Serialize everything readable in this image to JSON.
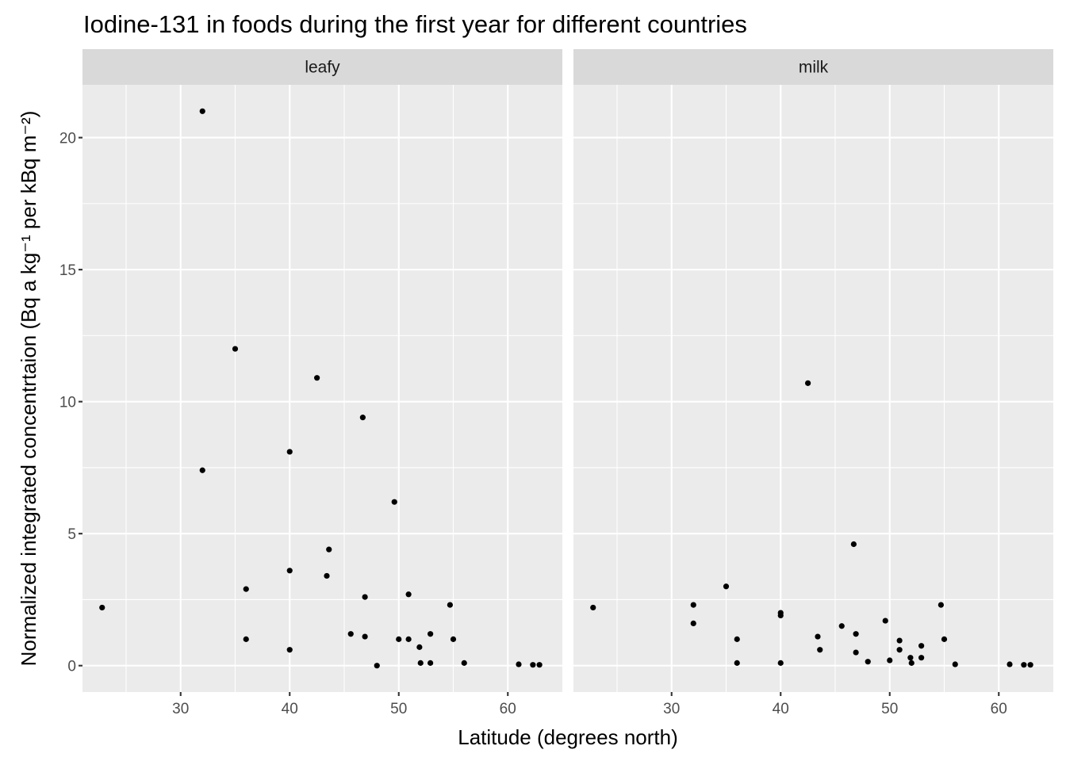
{
  "chart_data": {
    "type": "scatter",
    "title": "Iodine-131 in foods during the first year for different countries",
    "xlabel": "Latitude (degrees north)",
    "ylabel": "Normalized integrated concentrtaion (Bq a kg⁻¹ per kBq m⁻²)",
    "xlim": [
      21.0,
      65.0
    ],
    "ylim": [
      -1.0,
      22.0
    ],
    "xticks": [
      30,
      40,
      50,
      60
    ],
    "yticks": [
      0,
      5,
      10,
      15,
      20
    ],
    "grid": true,
    "legend": "none",
    "panels": [
      {
        "name": "leafy",
        "points": [
          {
            "x": 22.8,
            "y": 2.2
          },
          {
            "x": 32.0,
            "y": 21.0
          },
          {
            "x": 32.0,
            "y": 7.4
          },
          {
            "x": 35.0,
            "y": 12.0
          },
          {
            "x": 36.0,
            "y": 2.9
          },
          {
            "x": 36.0,
            "y": 1.0
          },
          {
            "x": 40.0,
            "y": 8.1
          },
          {
            "x": 40.0,
            "y": 3.6
          },
          {
            "x": 40.0,
            "y": 0.6
          },
          {
            "x": 42.5,
            "y": 10.9
          },
          {
            "x": 43.4,
            "y": 3.4
          },
          {
            "x": 43.6,
            "y": 4.4
          },
          {
            "x": 45.6,
            "y": 1.2
          },
          {
            "x": 46.7,
            "y": 9.4
          },
          {
            "x": 46.9,
            "y": 2.6
          },
          {
            "x": 46.9,
            "y": 1.1
          },
          {
            "x": 48.0,
            "y": 0.0
          },
          {
            "x": 49.6,
            "y": 6.2
          },
          {
            "x": 50.0,
            "y": 1.0
          },
          {
            "x": 50.9,
            "y": 2.7
          },
          {
            "x": 50.9,
            "y": 1.0
          },
          {
            "x": 51.9,
            "y": 0.7
          },
          {
            "x": 52.0,
            "y": 0.1
          },
          {
            "x": 52.9,
            "y": 1.2
          },
          {
            "x": 52.9,
            "y": 0.1
          },
          {
            "x": 54.7,
            "y": 2.3
          },
          {
            "x": 55.0,
            "y": 1.0
          },
          {
            "x": 56.0,
            "y": 0.1
          },
          {
            "x": 61.0,
            "y": 0.05
          },
          {
            "x": 62.3,
            "y": 0.03
          },
          {
            "x": 62.9,
            "y": 0.03
          }
        ]
      },
      {
        "name": "milk",
        "points": [
          {
            "x": 22.8,
            "y": 2.2
          },
          {
            "x": 32.0,
            "y": 2.3
          },
          {
            "x": 32.0,
            "y": 1.6
          },
          {
            "x": 35.0,
            "y": 3.0
          },
          {
            "x": 36.0,
            "y": 1.0
          },
          {
            "x": 36.0,
            "y": 0.1
          },
          {
            "x": 40.0,
            "y": 2.0
          },
          {
            "x": 40.0,
            "y": 1.9
          },
          {
            "x": 40.0,
            "y": 0.1
          },
          {
            "x": 42.5,
            "y": 10.7
          },
          {
            "x": 43.4,
            "y": 1.1
          },
          {
            "x": 43.6,
            "y": 0.6
          },
          {
            "x": 45.6,
            "y": 1.5
          },
          {
            "x": 46.7,
            "y": 4.6
          },
          {
            "x": 46.9,
            "y": 1.2
          },
          {
            "x": 46.9,
            "y": 0.5
          },
          {
            "x": 48.0,
            "y": 0.15
          },
          {
            "x": 49.6,
            "y": 1.7
          },
          {
            "x": 50.0,
            "y": 0.2
          },
          {
            "x": 50.9,
            "y": 0.95
          },
          {
            "x": 50.9,
            "y": 0.6
          },
          {
            "x": 51.9,
            "y": 0.3
          },
          {
            "x": 52.0,
            "y": 0.1
          },
          {
            "x": 52.9,
            "y": 0.75
          },
          {
            "x": 52.9,
            "y": 0.3
          },
          {
            "x": 54.7,
            "y": 2.3
          },
          {
            "x": 55.0,
            "y": 1.0
          },
          {
            "x": 56.0,
            "y": 0.05
          },
          {
            "x": 61.0,
            "y": 0.05
          },
          {
            "x": 62.3,
            "y": 0.03
          },
          {
            "x": 62.9,
            "y": 0.03
          }
        ]
      }
    ]
  }
}
